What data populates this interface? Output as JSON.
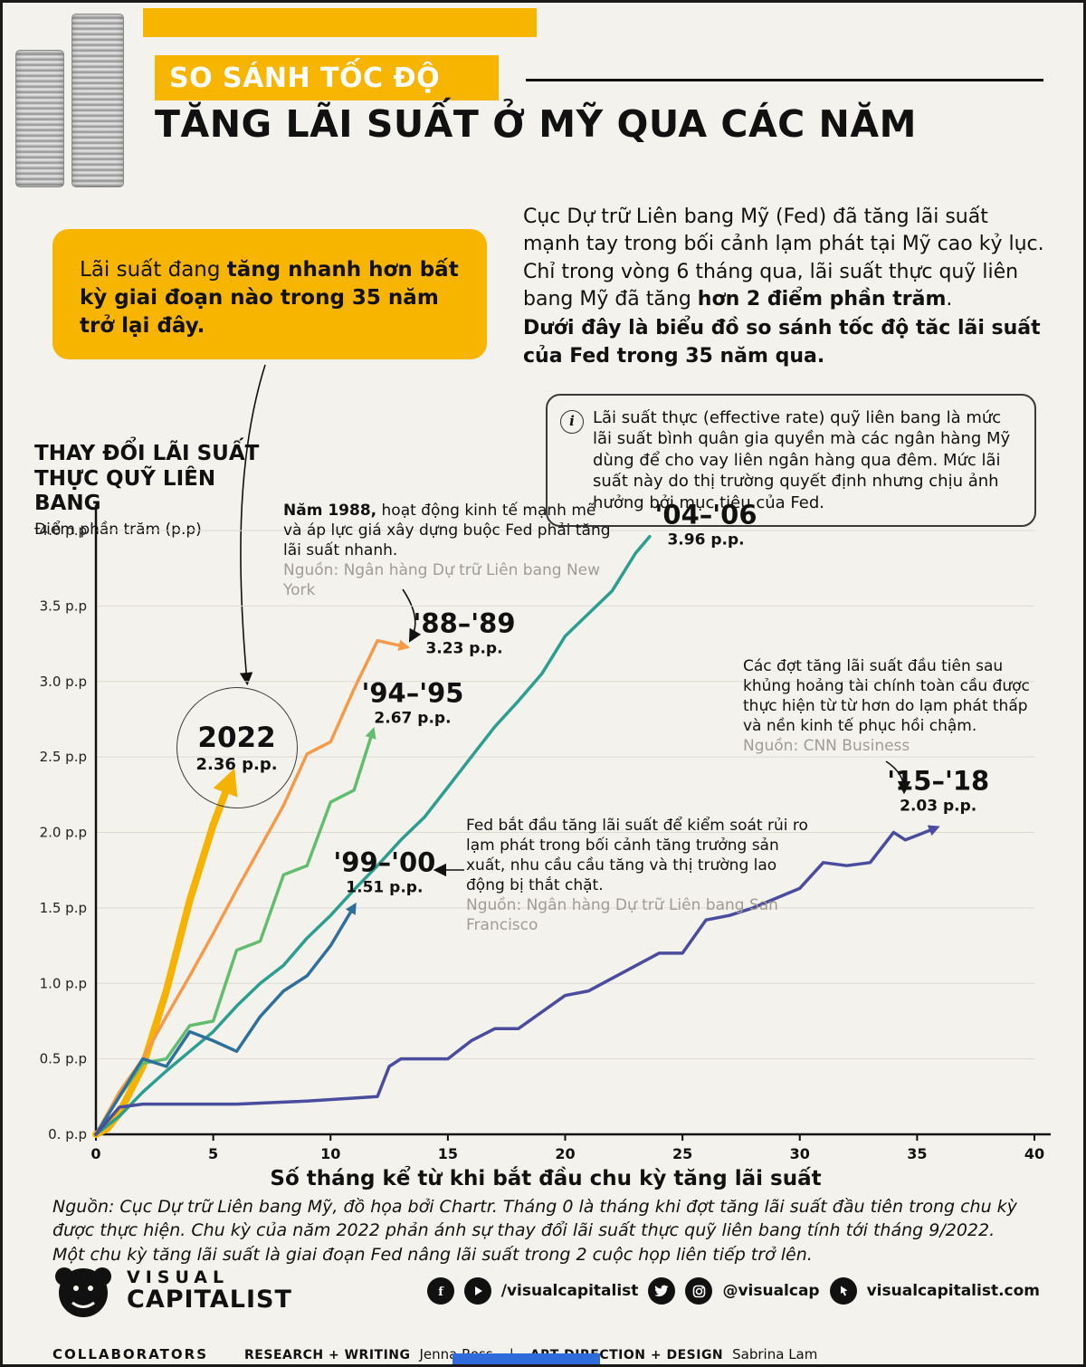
{
  "colors": {
    "accent": "#F7B500",
    "selection": "#2f6bdb"
  },
  "header": {
    "kicker": "SO SÁNH TỐC ĐỘ",
    "title": "TĂNG LÃI SUẤT Ở MỸ QUA CÁC NĂM"
  },
  "callout": {
    "t1": "Lãi suất đang ",
    "t2": "tăng nhanh hơn bất kỳ giai đoạn nào trong 35 năm trở lại đây."
  },
  "intro": {
    "t1": "Cục Dự trữ Liên bang Mỹ (Fed) đã tăng lãi suất mạnh tay trong bối cảnh lạm phát tại Mỹ cao kỷ lục. Chỉ trong vòng 6 tháng qua, lãi suất thực quỹ liên bang Mỹ đã tăng ",
    "t2": "hơn 2 điểm phần trăm",
    "t3": ".",
    "t4": "Dưới đây là biểu đồ so sánh tốc độ tăc lãi suất của Fed trong 35 năm qua."
  },
  "info_note": {
    "icon": "i",
    "text": "Lãi suất thực (effective rate) quỹ liên bang là mức lãi suất bình quân gia quyền mà các ngân hàng Mỹ dùng để cho vay liên ngân hàng qua đêm. Mức lãi suất này do thị trường quyết định nhưng chịu ảnh hưởng bởi mục tiêu của Fed."
  },
  "axis_block": {
    "l1": "THAY ĐỔI LÃI SUẤT",
    "l2": "THỰC QUỸ LIÊN BANG",
    "sub": "Điểm phần trăm (p.p)"
  },
  "ann_1988": {
    "lead": "Năm 1988,",
    "text": " hoạt động kinh tế mạnh mẽ và áp lực giá xây dựng buộc Fed phải tăng lãi suất nhanh.",
    "source": "Nguồn: Ngân hàng Dự trữ Liên bang New York"
  },
  "ann_gfc": {
    "text": "Các đợt tăng lãi suất đầu tiên sau khủng hoảng tài chính toàn cầu được thực hiện từ từ hơn do lạm phát thấp và nền kinh tế phục hồi chậm.",
    "source": "Nguồn: CNN Business"
  },
  "ann_99": {
    "text": "Fed bắt đầu tăng lãi suất để kiểm soát rủi ro lạm phát trong bối cảnh tăng trưởng sản xuất, nhu cầu cầu tăng và thị trường lao động bị thắt chặt.",
    "source": "Nguồn: Ngân hàng Dự trữ Liên bang San Francisco"
  },
  "footer": {
    "src1": "Nguồn: Cục Dự trữ Liên bang Mỹ, đồ họa bởi Chartr. Tháng 0 là tháng khi đợt tăng lãi suất đầu tiên trong chu kỳ được thực hiện. Chu kỳ của năm 2022 phản ánh sự thay đổi lãi suất thực quỹ liên bang tính tới tháng 9/2022.",
    "src2": "Một chu kỳ tăng lãi suất là giai đoạn Fed nâng lãi suất trong 2 cuộc họp liên tiếp trở lên.",
    "brand1": "VISUAL",
    "brand2": "CAPITALIST",
    "social_fb": "/visualcapitalist",
    "social_ig": "@visualcap",
    "social_web": "visualcapitalist.com",
    "collab": "COLLABORATORS",
    "role1": "RESEARCH + WRITING",
    "name1": "Jenna Ross",
    "sep": "|",
    "role2": "ART DIRECTION + DESIGN",
    "name2": "Sabrina Lam"
  },
  "chart_data": {
    "type": "line",
    "xlabel": "Số tháng kể từ khi bắt đầu chu kỳ tăng lãi suất",
    "ylabel": "Điểm phần trăm (p.p)",
    "xlim": [
      0,
      40
    ],
    "ylim": [
      0,
      4
    ],
    "grid": "horizontal",
    "legend": "inline-labels",
    "xticks": [
      0,
      5,
      10,
      15,
      20,
      25,
      30,
      35,
      40
    ],
    "yticks": [
      {
        "v": 0,
        "label": "0. p.p"
      },
      {
        "v": 0.5,
        "label": "0.5 p.p"
      },
      {
        "v": 1,
        "label": "1.0 p.p"
      },
      {
        "v": 1.5,
        "label": "1.5 p.p"
      },
      {
        "v": 2,
        "label": "2.0 p.p"
      },
      {
        "v": 2.5,
        "label": "2.5 p.p"
      },
      {
        "v": 3,
        "label": "3.0 p.p"
      },
      {
        "v": 3.5,
        "label": "3.5 p.p"
      },
      {
        "v": 4,
        "label": "4.0 p.p"
      }
    ],
    "series": [
      {
        "name": "2022",
        "label": "2022",
        "value_label": "2.36 p.p.",
        "total_pp": 2.36,
        "color": "#F5B300",
        "width": 8,
        "arrow": true,
        "circled": true,
        "label_anchor": [
          6.0,
          2.56
        ],
        "x": [
          0,
          0.5,
          1,
          2,
          3,
          4,
          5,
          5.75
        ],
        "y": [
          0,
          0.04,
          0.14,
          0.45,
          0.95,
          1.55,
          2.05,
          2.36
        ]
      },
      {
        "name": "88-89",
        "label": "'88–'89",
        "value_label": "3.23 p.p.",
        "total_pp": 3.23,
        "color": "#F59A49",
        "width": 3.5,
        "arrow": true,
        "circled": false,
        "label_anchor": [
          15.7,
          3.32
        ],
        "x": [
          0,
          1,
          2,
          3,
          4,
          5,
          6,
          7,
          8,
          9,
          10,
          11,
          12,
          13.2
        ],
        "y": [
          0,
          0.28,
          0.5,
          0.78,
          1.05,
          1.33,
          1.62,
          1.9,
          2.18,
          2.52,
          2.6,
          2.95,
          3.27,
          3.23
        ]
      },
      {
        "name": "94-95",
        "label": "'94–'95",
        "value_label": "2.67 p.p.",
        "total_pp": 2.67,
        "color": "#63BD70",
        "width": 3.5,
        "arrow": true,
        "circled": false,
        "label_anchor": [
          13.5,
          2.86
        ],
        "x": [
          0,
          1,
          2,
          3,
          4,
          5,
          6,
          7,
          8,
          9,
          10,
          11,
          11.8
        ],
        "y": [
          0,
          0.25,
          0.47,
          0.5,
          0.72,
          0.75,
          1.22,
          1.28,
          1.72,
          1.78,
          2.2,
          2.28,
          2.67
        ]
      },
      {
        "name": "04-06",
        "label": "'04–'06",
        "value_label": "3.96 p.p.",
        "total_pp": 3.96,
        "color": "#2C9E90",
        "width": 3.5,
        "arrow": false,
        "circled": false,
        "label_anchor": [
          26.0,
          4.04
        ],
        "x": [
          0,
          1,
          2,
          3,
          4,
          5,
          6,
          7,
          8,
          9,
          10,
          11,
          12,
          13,
          14,
          15,
          16,
          17,
          18,
          19,
          20,
          21,
          22,
          23,
          23.6
        ],
        "y": [
          0,
          0.12,
          0.28,
          0.42,
          0.55,
          0.68,
          0.85,
          1.0,
          1.12,
          1.3,
          1.45,
          1.62,
          1.78,
          1.95,
          2.1,
          2.3,
          2.5,
          2.7,
          2.87,
          3.05,
          3.3,
          3.45,
          3.6,
          3.85,
          3.96
        ]
      },
      {
        "name": "99-00",
        "label": "'99–'00",
        "value_label": "1.51 p.p.",
        "total_pp": 1.51,
        "color": "#2F6F9B",
        "width": 3.5,
        "arrow": true,
        "circled": false,
        "label_anchor": [
          12.3,
          1.74
        ],
        "x": [
          0,
          1,
          2,
          3,
          4,
          5,
          6,
          7,
          8,
          9,
          10,
          11
        ],
        "y": [
          0,
          0.25,
          0.5,
          0.45,
          0.68,
          0.62,
          0.55,
          0.78,
          0.95,
          1.05,
          1.25,
          1.51
        ]
      },
      {
        "name": "15-18",
        "label": "'15–'18",
        "value_label": "2.03 p.p.",
        "total_pp": 2.03,
        "color": "#4A4C9D",
        "width": 3.5,
        "arrow": true,
        "circled": false,
        "label_anchor": [
          35.9,
          2.28
        ],
        "x": [
          0,
          1,
          2,
          3,
          6,
          9,
          12,
          12.5,
          13,
          15,
          16,
          17,
          18,
          20,
          21,
          24,
          25,
          26,
          27,
          28,
          30,
          31,
          32,
          33,
          34,
          34.5,
          35,
          35.8
        ],
        "y": [
          0,
          0.18,
          0.2,
          0.2,
          0.2,
          0.22,
          0.25,
          0.45,
          0.5,
          0.5,
          0.62,
          0.7,
          0.7,
          0.92,
          0.95,
          1.2,
          1.2,
          1.42,
          1.45,
          1.5,
          1.63,
          1.8,
          1.78,
          1.8,
          2.0,
          1.95,
          1.98,
          2.03
        ]
      }
    ]
  }
}
